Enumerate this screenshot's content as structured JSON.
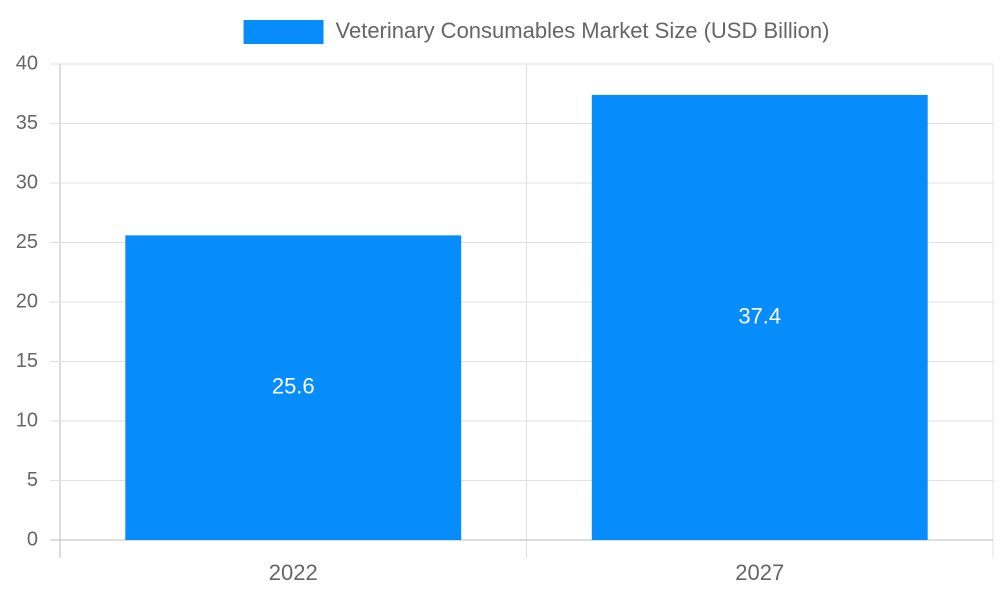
{
  "chart_data": {
    "type": "bar",
    "categories": [
      "2022",
      "2027"
    ],
    "series": [
      {
        "name": "Veterinary Consumables Market Size (USD Billion)",
        "color": "#068cfb",
        "values": [
          25.6,
          37.4
        ]
      }
    ],
    "ylim": [
      0,
      40
    ],
    "yticks": [
      0,
      5,
      10,
      15,
      20,
      25,
      30,
      35,
      40
    ],
    "grid": true,
    "legend": "top"
  }
}
